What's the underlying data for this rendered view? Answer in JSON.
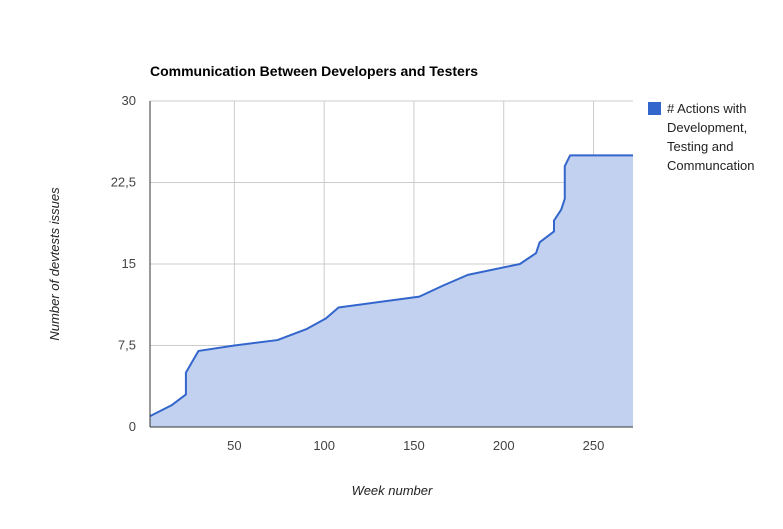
{
  "chart_data": {
    "type": "area",
    "title": "Communication Between Developers and Testers",
    "xlabel": "Week number",
    "ylabel": "Number of devtests issues",
    "xlim": [
      3,
      272
    ],
    "ylim": [
      0,
      30
    ],
    "x_ticks": [
      50,
      100,
      150,
      200,
      250
    ],
    "x_tick_labels": [
      "50",
      "100",
      "150",
      "200",
      "250"
    ],
    "y_ticks": [
      0,
      7.5,
      15,
      22.5,
      30
    ],
    "y_tick_labels": [
      "0",
      "7,5",
      "15",
      "22,5",
      "30"
    ],
    "grid": true,
    "legend_position": "right",
    "series": [
      {
        "name": "# Actions with Development, Testing and Communcation",
        "legend_lines": [
          "# Actions with",
          "Development,",
          "Testing and",
          "Communcation"
        ],
        "color": "#3366cc",
        "fill_color": "#c2d1f0",
        "x": [
          3,
          15,
          23,
          23,
          30,
          50,
          74,
          90,
          101,
          108,
          153,
          166,
          180,
          209,
          218,
          220,
          228,
          228,
          232,
          234,
          234,
          237,
          272
        ],
        "y": [
          1,
          2,
          3,
          5,
          7,
          7.5,
          8,
          9,
          10,
          11,
          12,
          13,
          14,
          15,
          16,
          17,
          18,
          19,
          20,
          21,
          24,
          25,
          25
        ]
      }
    ]
  }
}
